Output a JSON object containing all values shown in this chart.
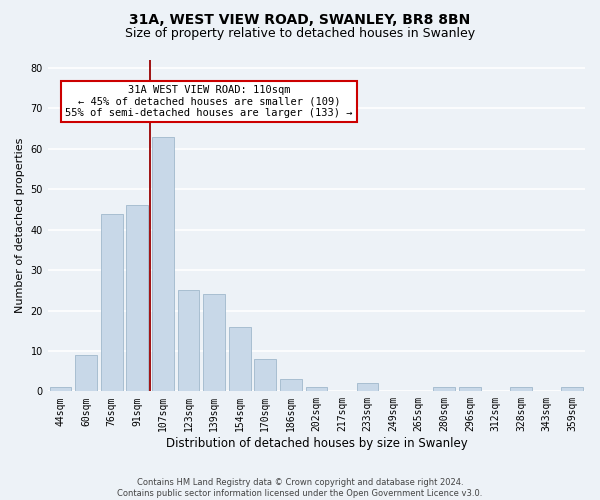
{
  "title1": "31A, WEST VIEW ROAD, SWANLEY, BR8 8BN",
  "title2": "Size of property relative to detached houses in Swanley",
  "xlabel": "Distribution of detached houses by size in Swanley",
  "ylabel": "Number of detached properties",
  "categories": [
    "44sqm",
    "60sqm",
    "76sqm",
    "91sqm",
    "107sqm",
    "123sqm",
    "139sqm",
    "154sqm",
    "170sqm",
    "186sqm",
    "202sqm",
    "217sqm",
    "233sqm",
    "249sqm",
    "265sqm",
    "280sqm",
    "296sqm",
    "312sqm",
    "328sqm",
    "343sqm",
    "359sqm"
  ],
  "values": [
    1,
    9,
    44,
    46,
    63,
    25,
    24,
    16,
    8,
    3,
    1,
    0,
    2,
    0,
    0,
    1,
    1,
    0,
    1,
    0,
    1
  ],
  "bar_color": "#c8d8e8",
  "bar_edge_color": "#a0b8cc",
  "red_line_index": 3.5,
  "annotation_line1": "31A WEST VIEW ROAD: 110sqm",
  "annotation_line2": "← 45% of detached houses are smaller (109)",
  "annotation_line3": "55% of semi-detached houses are larger (133) →",
  "annotation_box_color": "white",
  "annotation_box_edge_color": "#cc0000",
  "ylim": [
    0,
    82
  ],
  "yticks": [
    0,
    10,
    20,
    30,
    40,
    50,
    60,
    70,
    80
  ],
  "background_color": "#edf2f7",
  "grid_color": "white",
  "footer": "Contains HM Land Registry data © Crown copyright and database right 2024.\nContains public sector information licensed under the Open Government Licence v3.0.",
  "title1_fontsize": 10,
  "title2_fontsize": 9,
  "xlabel_fontsize": 8.5,
  "ylabel_fontsize": 8,
  "tick_fontsize": 7,
  "footer_fontsize": 6,
  "annotation_fontsize": 7.5
}
